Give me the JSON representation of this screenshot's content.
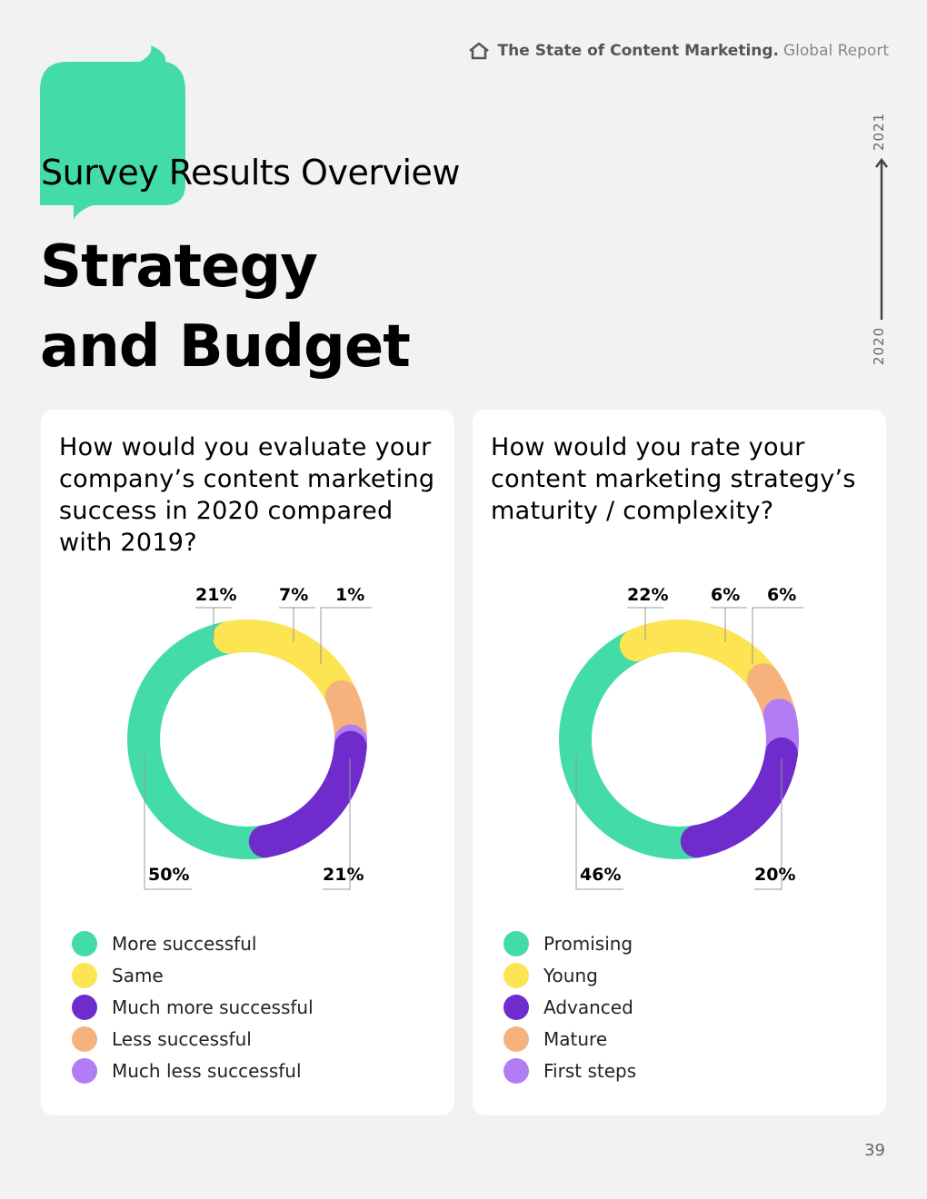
{
  "header": {
    "title_bold": "The State of Content Marketing.",
    "title_light": "Global Report"
  },
  "section_label": "Survey Results Overview",
  "page_title": {
    "line1": "Strategy",
    "line2": "and Budget"
  },
  "timeline": {
    "start": "2020",
    "end": "2021"
  },
  "page_number": "39",
  "colors": {
    "accent_green": "#44dca6",
    "yellow": "#fce452",
    "purple": "#6f2bcc",
    "orange": "#f5b27c",
    "lilac": "#b27cf4"
  },
  "chart_data": [
    {
      "type": "pie",
      "variant": "donut",
      "title": "How would you evaluate your company’s content marketing success in 2020 compared with 2019?",
      "labels": [
        "More successful",
        "Same",
        "Much more successful",
        "Less successful",
        "Much less successful"
      ],
      "values": [
        50,
        21,
        21,
        7,
        1
      ],
      "value_labels": [
        "50%",
        "21%",
        "21%",
        "7%",
        "1%"
      ],
      "colors": [
        "#44dca6",
        "#fce452",
        "#6f2bcc",
        "#f5b27c",
        "#b27cf4"
      ],
      "legend_position": "bottom"
    },
    {
      "type": "pie",
      "variant": "donut",
      "title": "How would you rate your content marketing strategy’s maturity / complexity?",
      "labels": [
        "Promising",
        "Young",
        "Advanced",
        "Mature",
        "First steps"
      ],
      "values": [
        46,
        22,
        20,
        6,
        6
      ],
      "value_labels": [
        "46%",
        "22%",
        "20%",
        "6%",
        "6%"
      ],
      "colors": [
        "#44dca6",
        "#fce452",
        "#6f2bcc",
        "#f5b27c",
        "#b27cf4"
      ],
      "legend_position": "bottom"
    }
  ]
}
